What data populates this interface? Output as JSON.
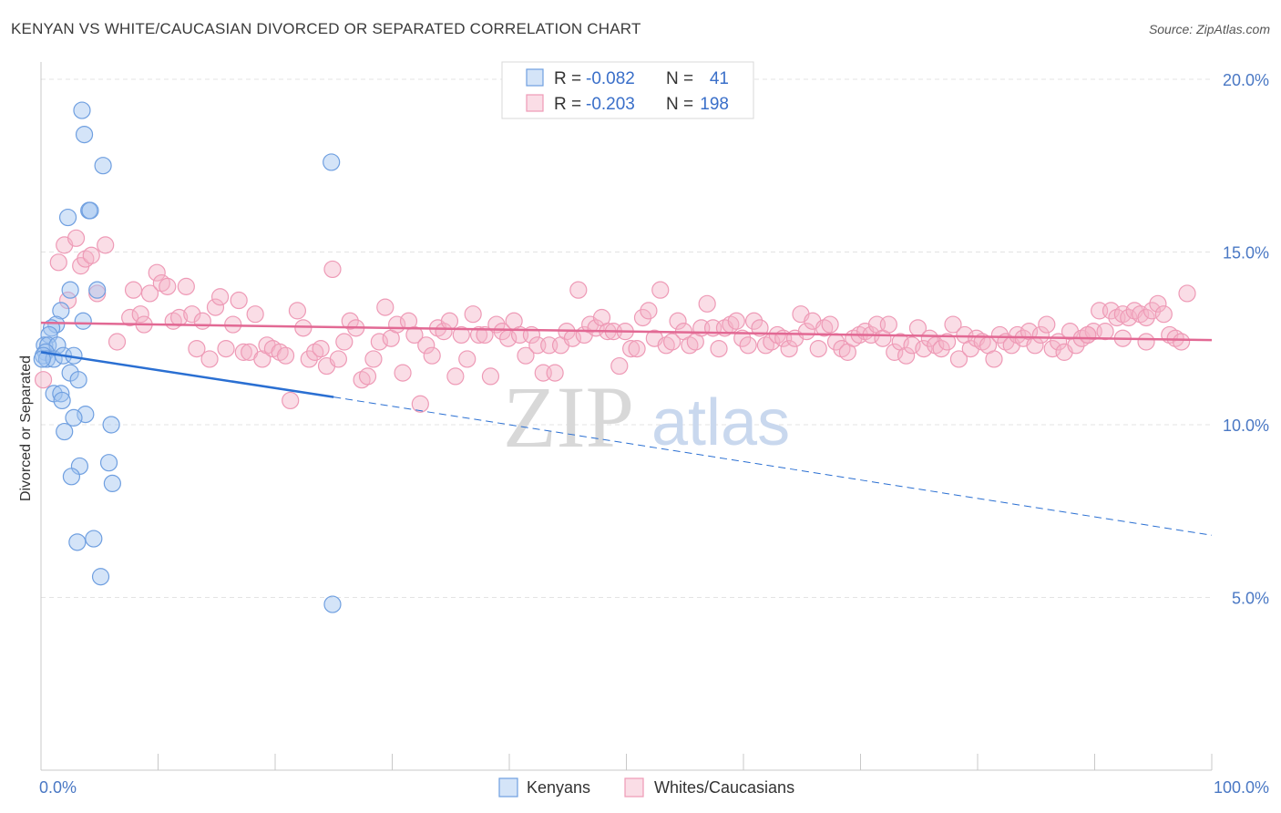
{
  "header": {
    "title": "KENYAN VS WHITE/CAUCASIAN DIVORCED OR SEPARATED CORRELATION CHART",
    "source": "Source: ZipAtlas.com"
  },
  "watermark": {
    "zip": "ZIP",
    "atlas": "atlas"
  },
  "colors": {
    "kenyan": "#6f9fe0",
    "white": "#ee9ab6",
    "kenyan_line": "#2a6fd2",
    "white_line": "#e26994",
    "tick_label": "#4a78c4"
  },
  "legend_top": {
    "rows": [
      {
        "r_label": "R = ",
        "r_value": "-0.082",
        "n_label": "N = ",
        "n_value": "41"
      },
      {
        "r_label": "R = ",
        "r_value": "-0.203",
        "n_label": "N = ",
        "n_value": "198"
      }
    ]
  },
  "legend_bottom": {
    "items": [
      "Kenyans",
      "Whites/Caucasians"
    ]
  },
  "chart_data": {
    "type": "scatter",
    "xlabel": "",
    "ylabel": "Divorced or Separated",
    "xlim": [
      0,
      100
    ],
    "ylim": [
      0,
      20.5
    ],
    "x_tick_labels": [
      "0.0%",
      "100.0%"
    ],
    "y_ticks": [
      5,
      10,
      15,
      20
    ],
    "y_tick_labels": [
      "5.0%",
      "10.0%",
      "15.0%",
      "20.0%"
    ],
    "grid": true,
    "series": [
      {
        "name": "Kenyans",
        "points": [
          [
            3.5,
            19.1
          ],
          [
            3.7,
            18.4
          ],
          [
            5.3,
            17.5
          ],
          [
            24.8,
            17.6
          ],
          [
            4.1,
            16.2
          ],
          [
            4.2,
            16.2
          ],
          [
            2.3,
            16.0
          ],
          [
            2.5,
            13.9
          ],
          [
            4.8,
            13.9
          ],
          [
            3.6,
            13.0
          ],
          [
            1.7,
            13.3
          ],
          [
            1.3,
            12.9
          ],
          [
            0.9,
            12.8
          ],
          [
            0.7,
            12.6
          ],
          [
            0.3,
            12.3
          ],
          [
            0.6,
            12.3
          ],
          [
            1.4,
            12.3
          ],
          [
            0.4,
            12.1
          ],
          [
            0.2,
            12.0
          ],
          [
            0.5,
            11.9
          ],
          [
            1.1,
            11.9
          ],
          [
            1.9,
            12.0
          ],
          [
            2.8,
            12.0
          ],
          [
            2.5,
            11.5
          ],
          [
            3.2,
            11.3
          ],
          [
            1.1,
            10.9
          ],
          [
            1.7,
            10.9
          ],
          [
            1.8,
            10.7
          ],
          [
            3.8,
            10.3
          ],
          [
            2.8,
            10.2
          ],
          [
            6.0,
            10.0
          ],
          [
            2.0,
            9.8
          ],
          [
            3.3,
            8.8
          ],
          [
            5.8,
            8.9
          ],
          [
            2.6,
            8.5
          ],
          [
            6.1,
            8.3
          ],
          [
            4.5,
            6.7
          ],
          [
            3.1,
            6.6
          ],
          [
            5.1,
            5.6
          ],
          [
            24.9,
            4.8
          ],
          [
            0.1,
            11.9
          ]
        ]
      },
      {
        "name": "Whites/Caucasians",
        "points": [
          [
            0.2,
            11.3
          ],
          [
            1.5,
            14.7
          ],
          [
            2.0,
            15.2
          ],
          [
            2.3,
            13.6
          ],
          [
            3.0,
            15.4
          ],
          [
            3.4,
            14.6
          ],
          [
            3.8,
            14.8
          ],
          [
            4.3,
            14.9
          ],
          [
            4.8,
            13.8
          ],
          [
            5.5,
            15.2
          ],
          [
            6.5,
            12.4
          ],
          [
            7.6,
            13.1
          ],
          [
            7.9,
            13.9
          ],
          [
            8.5,
            13.2
          ],
          [
            8.8,
            12.9
          ],
          [
            9.3,
            13.8
          ],
          [
            9.9,
            14.4
          ],
          [
            10.3,
            14.1
          ],
          [
            10.8,
            14.0
          ],
          [
            11.3,
            13.0
          ],
          [
            11.8,
            13.1
          ],
          [
            12.4,
            14.0
          ],
          [
            12.9,
            13.2
          ],
          [
            13.3,
            12.2
          ],
          [
            13.8,
            13.0
          ],
          [
            14.4,
            11.9
          ],
          [
            14.9,
            13.4
          ],
          [
            15.3,
            13.7
          ],
          [
            15.8,
            12.2
          ],
          [
            16.4,
            12.9
          ],
          [
            16.9,
            13.6
          ],
          [
            17.3,
            12.1
          ],
          [
            17.8,
            12.1
          ],
          [
            18.3,
            13.2
          ],
          [
            18.9,
            11.9
          ],
          [
            19.3,
            12.3
          ],
          [
            19.8,
            12.2
          ],
          [
            20.4,
            12.1
          ],
          [
            20.9,
            12.0
          ],
          [
            21.3,
            10.7
          ],
          [
            21.9,
            13.3
          ],
          [
            22.4,
            12.8
          ],
          [
            22.9,
            11.9
          ],
          [
            23.4,
            12.1
          ],
          [
            23.9,
            12.2
          ],
          [
            24.4,
            11.7
          ],
          [
            24.9,
            14.5
          ],
          [
            25.4,
            11.9
          ],
          [
            25.9,
            12.4
          ],
          [
            26.4,
            13.0
          ],
          [
            26.9,
            12.8
          ],
          [
            27.4,
            11.3
          ],
          [
            27.9,
            11.4
          ],
          [
            28.4,
            11.9
          ],
          [
            28.9,
            12.4
          ],
          [
            29.4,
            13.4
          ],
          [
            29.9,
            12.5
          ],
          [
            30.4,
            12.9
          ],
          [
            30.9,
            11.5
          ],
          [
            31.4,
            13.0
          ],
          [
            31.9,
            12.6
          ],
          [
            32.4,
            10.6
          ],
          [
            32.9,
            12.3
          ],
          [
            33.4,
            12.0
          ],
          [
            33.9,
            12.8
          ],
          [
            34.4,
            12.7
          ],
          [
            34.9,
            13.0
          ],
          [
            35.4,
            11.4
          ],
          [
            35.9,
            12.6
          ],
          [
            36.4,
            11.9
          ],
          [
            36.9,
            13.2
          ],
          [
            37.4,
            12.6
          ],
          [
            37.9,
            12.6
          ],
          [
            38.4,
            11.4
          ],
          [
            38.9,
            12.9
          ],
          [
            39.4,
            12.7
          ],
          [
            39.9,
            12.5
          ],
          [
            40.4,
            13.0
          ],
          [
            40.9,
            12.6
          ],
          [
            41.4,
            12.0
          ],
          [
            41.9,
            12.6
          ],
          [
            42.4,
            12.3
          ],
          [
            42.9,
            11.5
          ],
          [
            43.4,
            12.3
          ],
          [
            43.9,
            11.5
          ],
          [
            44.4,
            12.3
          ],
          [
            44.9,
            12.7
          ],
          [
            45.4,
            12.5
          ],
          [
            45.9,
            13.9
          ],
          [
            46.4,
            12.6
          ],
          [
            46.9,
            12.9
          ],
          [
            47.4,
            12.8
          ],
          [
            47.9,
            13.1
          ],
          [
            48.4,
            12.7
          ],
          [
            48.9,
            12.7
          ],
          [
            49.4,
            11.7
          ],
          [
            49.9,
            12.7
          ],
          [
            50.4,
            12.2
          ],
          [
            50.9,
            12.2
          ],
          [
            51.4,
            13.1
          ],
          [
            51.9,
            13.3
          ],
          [
            52.4,
            12.5
          ],
          [
            52.9,
            13.9
          ],
          [
            53.4,
            12.3
          ],
          [
            53.9,
            12.4
          ],
          [
            54.4,
            13.0
          ],
          [
            54.9,
            12.7
          ],
          [
            55.4,
            12.3
          ],
          [
            55.9,
            12.4
          ],
          [
            56.4,
            12.8
          ],
          [
            56.9,
            13.5
          ],
          [
            57.4,
            12.8
          ],
          [
            57.9,
            12.2
          ],
          [
            58.4,
            12.8
          ],
          [
            58.9,
            12.9
          ],
          [
            59.4,
            13.0
          ],
          [
            59.9,
            12.5
          ],
          [
            60.4,
            12.3
          ],
          [
            60.9,
            13.0
          ],
          [
            61.4,
            12.8
          ],
          [
            61.9,
            12.3
          ],
          [
            62.4,
            12.4
          ],
          [
            62.9,
            12.6
          ],
          [
            63.4,
            12.5
          ],
          [
            63.9,
            12.2
          ],
          [
            64.4,
            12.5
          ],
          [
            64.9,
            13.2
          ],
          [
            65.4,
            12.7
          ],
          [
            65.9,
            13.0
          ],
          [
            66.4,
            12.2
          ],
          [
            66.9,
            12.8
          ],
          [
            67.4,
            12.9
          ],
          [
            67.9,
            12.4
          ],
          [
            68.4,
            12.2
          ],
          [
            68.9,
            12.1
          ],
          [
            69.4,
            12.5
          ],
          [
            69.9,
            12.6
          ],
          [
            70.4,
            12.7
          ],
          [
            70.9,
            12.6
          ],
          [
            71.4,
            12.9
          ],
          [
            71.9,
            12.5
          ],
          [
            72.4,
            12.9
          ],
          [
            72.9,
            12.1
          ],
          [
            73.4,
            12.4
          ],
          [
            73.9,
            12.0
          ],
          [
            74.4,
            12.3
          ],
          [
            74.9,
            12.8
          ],
          [
            75.4,
            12.2
          ],
          [
            75.9,
            12.5
          ],
          [
            76.4,
            12.3
          ],
          [
            76.9,
            12.2
          ],
          [
            77.4,
            12.4
          ],
          [
            77.9,
            12.9
          ],
          [
            78.4,
            11.9
          ],
          [
            78.9,
            12.6
          ],
          [
            79.4,
            12.2
          ],
          [
            79.9,
            12.5
          ],
          [
            80.4,
            12.4
          ],
          [
            80.9,
            12.3
          ],
          [
            81.4,
            11.9
          ],
          [
            81.9,
            12.6
          ],
          [
            82.4,
            12.4
          ],
          [
            82.9,
            12.3
          ],
          [
            83.4,
            12.6
          ],
          [
            83.9,
            12.5
          ],
          [
            84.4,
            12.7
          ],
          [
            84.9,
            12.3
          ],
          [
            85.4,
            12.6
          ],
          [
            85.9,
            12.9
          ],
          [
            86.4,
            12.2
          ],
          [
            86.9,
            12.4
          ],
          [
            87.4,
            12.1
          ],
          [
            87.9,
            12.7
          ],
          [
            88.4,
            12.3
          ],
          [
            88.9,
            12.5
          ],
          [
            89.4,
            12.6
          ],
          [
            89.9,
            12.7
          ],
          [
            90.4,
            13.3
          ],
          [
            90.9,
            12.7
          ],
          [
            91.4,
            13.3
          ],
          [
            91.9,
            13.1
          ],
          [
            92.4,
            13.2
          ],
          [
            92.9,
            13.1
          ],
          [
            93.4,
            13.3
          ],
          [
            93.9,
            13.2
          ],
          [
            94.4,
            13.1
          ],
          [
            94.9,
            13.3
          ],
          [
            95.4,
            13.5
          ],
          [
            95.9,
            13.2
          ],
          [
            96.4,
            12.6
          ],
          [
            96.9,
            12.5
          ],
          [
            97.4,
            12.4
          ],
          [
            97.9,
            13.8
          ],
          [
            89.4,
            12.6
          ],
          [
            92.4,
            12.5
          ],
          [
            94.4,
            12.4
          ]
        ]
      }
    ],
    "trend_lines": [
      {
        "series": "Kenyans",
        "solid": [
          [
            0,
            12.1
          ],
          [
            25,
            10.8
          ]
        ],
        "dashed": [
          [
            25,
            10.8
          ],
          [
            100,
            6.8
          ]
        ]
      },
      {
        "series": "Whites/Caucasians",
        "solid": [
          [
            0,
            12.95
          ],
          [
            100,
            12.45
          ]
        ]
      }
    ]
  }
}
